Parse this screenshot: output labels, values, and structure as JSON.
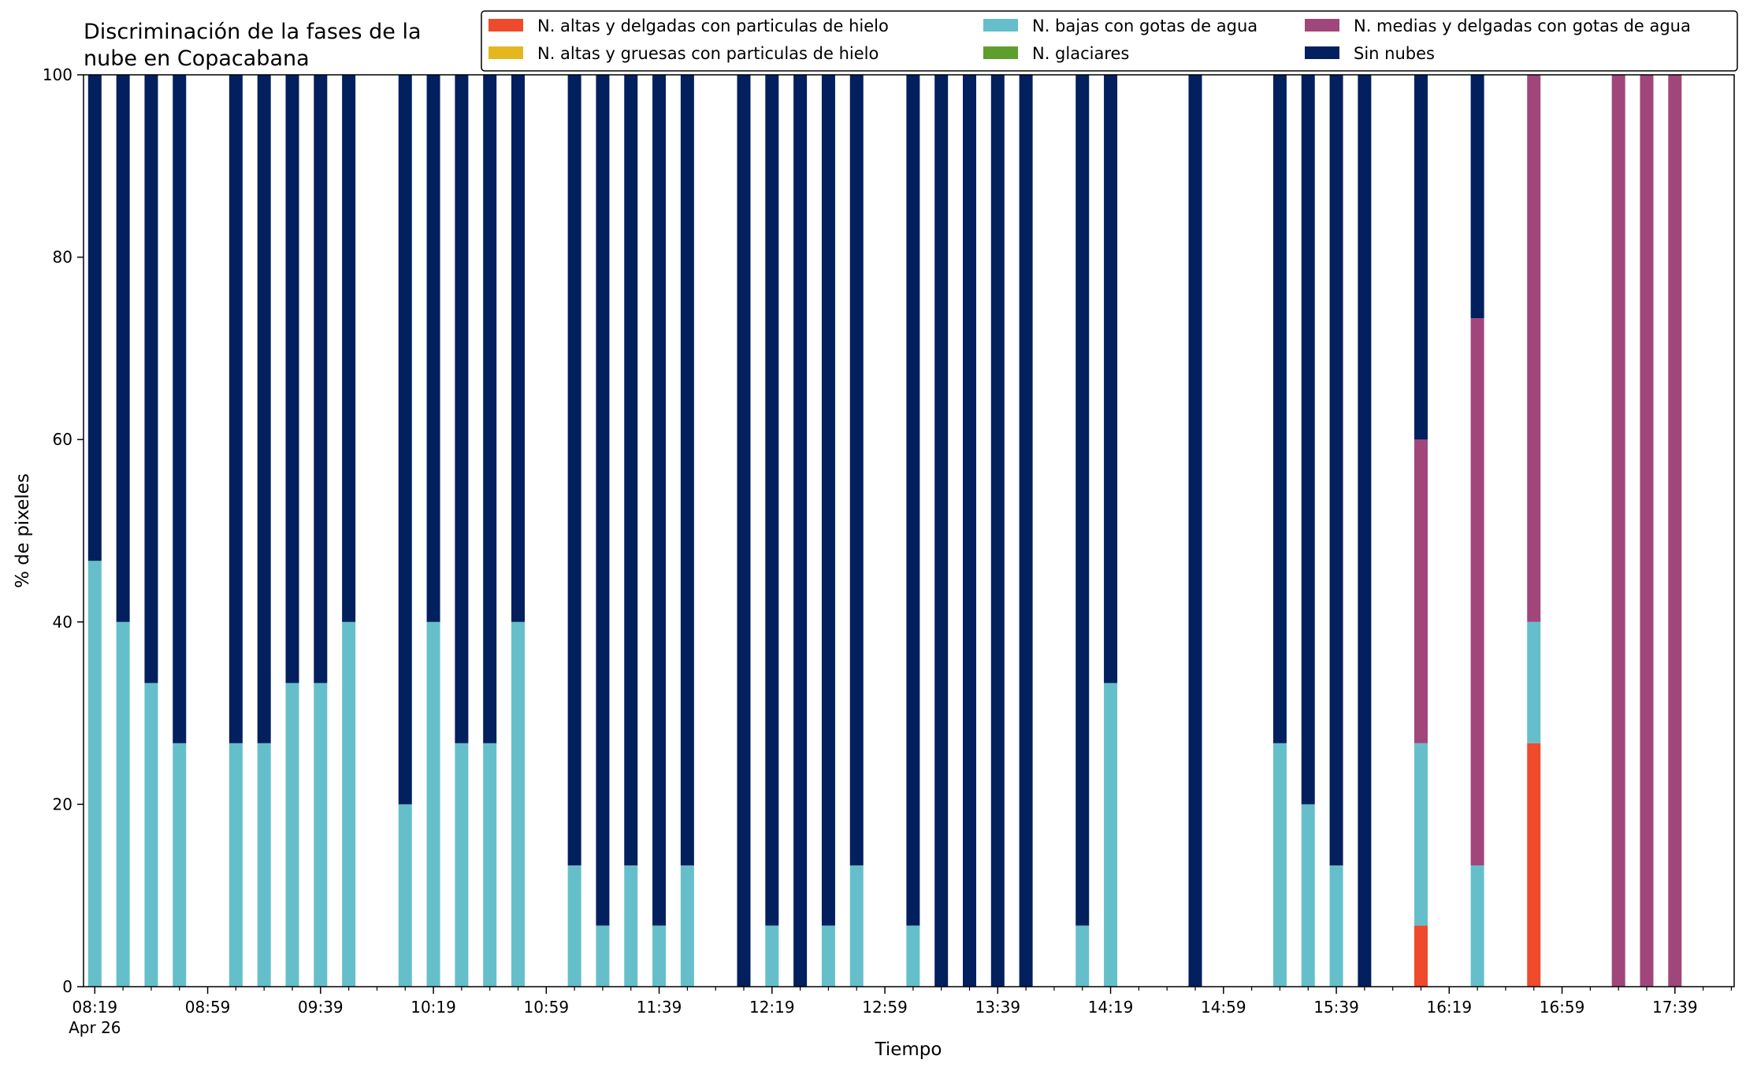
{
  "chart_data": {
    "type": "bar",
    "stacked": true,
    "title_lines": [
      "Discriminación de la fases de la",
      "nube en Copacabana"
    ],
    "xlabel": "Tiempo",
    "ylabel": "% de pixeles",
    "ylim": [
      0,
      100
    ],
    "yticks": [
      0,
      20,
      40,
      60,
      80,
      100
    ],
    "xlim": [
      "08:15",
      "18:00"
    ],
    "x_major_ticks": [
      "08:19",
      "08:59",
      "09:39",
      "10:19",
      "10:59",
      "11:39",
      "12:19",
      "12:59",
      "13:39",
      "14:19",
      "14:59",
      "15:39",
      "16:19",
      "16:59",
      "17:39"
    ],
    "x_minor_tick_minutes": 10,
    "x_date_label": "Apr 26",
    "grid": false,
    "legend": {
      "placement": "top-right",
      "columns": 3
    },
    "series": [
      {
        "name": "N. altas y delgadas con particulas de hielo",
        "color": "#ee4a2b"
      },
      {
        "name": "N. altas y gruesas con particulas de hielo",
        "color": "#e4b61f"
      },
      {
        "name": "N. bajas con gotas de agua",
        "color": "#65bfca"
      },
      {
        "name": "N. glaciares",
        "color": "#5e9e2d"
      },
      {
        "name": "N. medias y delgadas con gotas de agua",
        "color": "#a0467a"
      },
      {
        "name": "Sin nubes",
        "color": "#021f5e"
      }
    ],
    "stack_order": [
      "N. altas y delgadas con particulas de hielo",
      "N. altas y gruesas con particulas de hielo",
      "N. bajas con gotas de agua",
      "N. glaciares",
      "N. medias y delgadas con gotas de agua",
      "Sin nubes"
    ],
    "bars": [
      {
        "time": "08:19",
        "values": [
          0,
          0,
          46.7,
          0,
          0,
          53.3
        ]
      },
      {
        "time": "08:29",
        "values": [
          0,
          0,
          40,
          0,
          0,
          60
        ]
      },
      {
        "time": "08:39",
        "values": [
          0,
          0,
          33.3,
          0,
          0,
          66.7
        ]
      },
      {
        "time": "08:49",
        "values": [
          0,
          0,
          26.7,
          0,
          0,
          73.3
        ]
      },
      {
        "time": "09:09",
        "values": [
          0,
          0,
          26.7,
          0,
          0,
          73.3
        ]
      },
      {
        "time": "09:19",
        "values": [
          0,
          0,
          26.7,
          0,
          0,
          73.3
        ]
      },
      {
        "time": "09:29",
        "values": [
          0,
          0,
          33.3,
          0,
          0,
          66.7
        ]
      },
      {
        "time": "09:39",
        "values": [
          0,
          0,
          33.3,
          0,
          0,
          66.7
        ]
      },
      {
        "time": "09:49",
        "values": [
          0,
          0,
          40,
          0,
          0,
          60
        ]
      },
      {
        "time": "10:09",
        "values": [
          0,
          0,
          20,
          0,
          0,
          80
        ]
      },
      {
        "time": "10:19",
        "values": [
          0,
          0,
          40,
          0,
          0,
          60
        ]
      },
      {
        "time": "10:29",
        "values": [
          0,
          0,
          26.7,
          0,
          0,
          73.3
        ]
      },
      {
        "time": "10:39",
        "values": [
          0,
          0,
          26.7,
          0,
          0,
          73.3
        ]
      },
      {
        "time": "10:49",
        "values": [
          0,
          0,
          40,
          0,
          0,
          60
        ]
      },
      {
        "time": "11:09",
        "values": [
          0,
          0,
          13.3,
          0,
          0,
          86.7
        ]
      },
      {
        "time": "11:19",
        "values": [
          0,
          0,
          6.7,
          0,
          0,
          93.3
        ]
      },
      {
        "time": "11:29",
        "values": [
          0,
          0,
          13.3,
          0,
          0,
          86.7
        ]
      },
      {
        "time": "11:39",
        "values": [
          0,
          0,
          6.7,
          0,
          0,
          93.3
        ]
      },
      {
        "time": "11:49",
        "values": [
          0,
          0,
          13.3,
          0,
          0,
          86.7
        ]
      },
      {
        "time": "12:09",
        "values": [
          0,
          0,
          0,
          0,
          0,
          100
        ]
      },
      {
        "time": "12:19",
        "values": [
          0,
          0,
          6.7,
          0,
          0,
          93.3
        ]
      },
      {
        "time": "12:29",
        "values": [
          0,
          0,
          0,
          0,
          0,
          100
        ]
      },
      {
        "time": "12:39",
        "values": [
          0,
          0,
          6.7,
          0,
          0,
          93.3
        ]
      },
      {
        "time": "12:49",
        "values": [
          0,
          0,
          13.3,
          0,
          0,
          86.7
        ]
      },
      {
        "time": "13:09",
        "values": [
          0,
          0,
          6.7,
          0,
          0,
          93.3
        ]
      },
      {
        "time": "13:19",
        "values": [
          0,
          0,
          0,
          0,
          0,
          100
        ]
      },
      {
        "time": "13:29",
        "values": [
          0,
          0,
          0,
          0,
          0,
          100
        ]
      },
      {
        "time": "13:39",
        "values": [
          0,
          0,
          0,
          0,
          0,
          100
        ]
      },
      {
        "time": "13:49",
        "values": [
          0,
          0,
          0,
          0,
          0,
          100
        ]
      },
      {
        "time": "14:09",
        "values": [
          0,
          0,
          6.7,
          0,
          0,
          93.3
        ]
      },
      {
        "time": "14:19",
        "values": [
          0,
          0,
          33.3,
          0,
          0,
          66.7
        ]
      },
      {
        "time": "14:49",
        "values": [
          0,
          0,
          0,
          0,
          0,
          100
        ]
      },
      {
        "time": "15:19",
        "values": [
          0,
          0,
          26.7,
          0,
          0,
          73.3
        ]
      },
      {
        "time": "15:29",
        "values": [
          0,
          0,
          20,
          0,
          0,
          80
        ]
      },
      {
        "time": "15:39",
        "values": [
          0,
          0,
          13.3,
          0,
          0,
          86.7
        ]
      },
      {
        "time": "15:49",
        "values": [
          0,
          0,
          0,
          0,
          0,
          100
        ]
      },
      {
        "time": "16:09",
        "values": [
          6.7,
          0,
          20,
          0,
          33.3,
          40
        ]
      },
      {
        "time": "16:29",
        "values": [
          0,
          0,
          13.3,
          0,
          60,
          26.7
        ]
      },
      {
        "time": "16:49",
        "values": [
          26.7,
          0,
          13.3,
          0,
          60,
          0
        ]
      },
      {
        "time": "17:19",
        "values": [
          0,
          0,
          0,
          0,
          100,
          0
        ]
      },
      {
        "time": "17:29",
        "values": [
          0,
          0,
          0,
          0,
          100,
          0
        ]
      },
      {
        "time": "17:39",
        "values": [
          0,
          0,
          0,
          0,
          100,
          0
        ]
      }
    ]
  }
}
